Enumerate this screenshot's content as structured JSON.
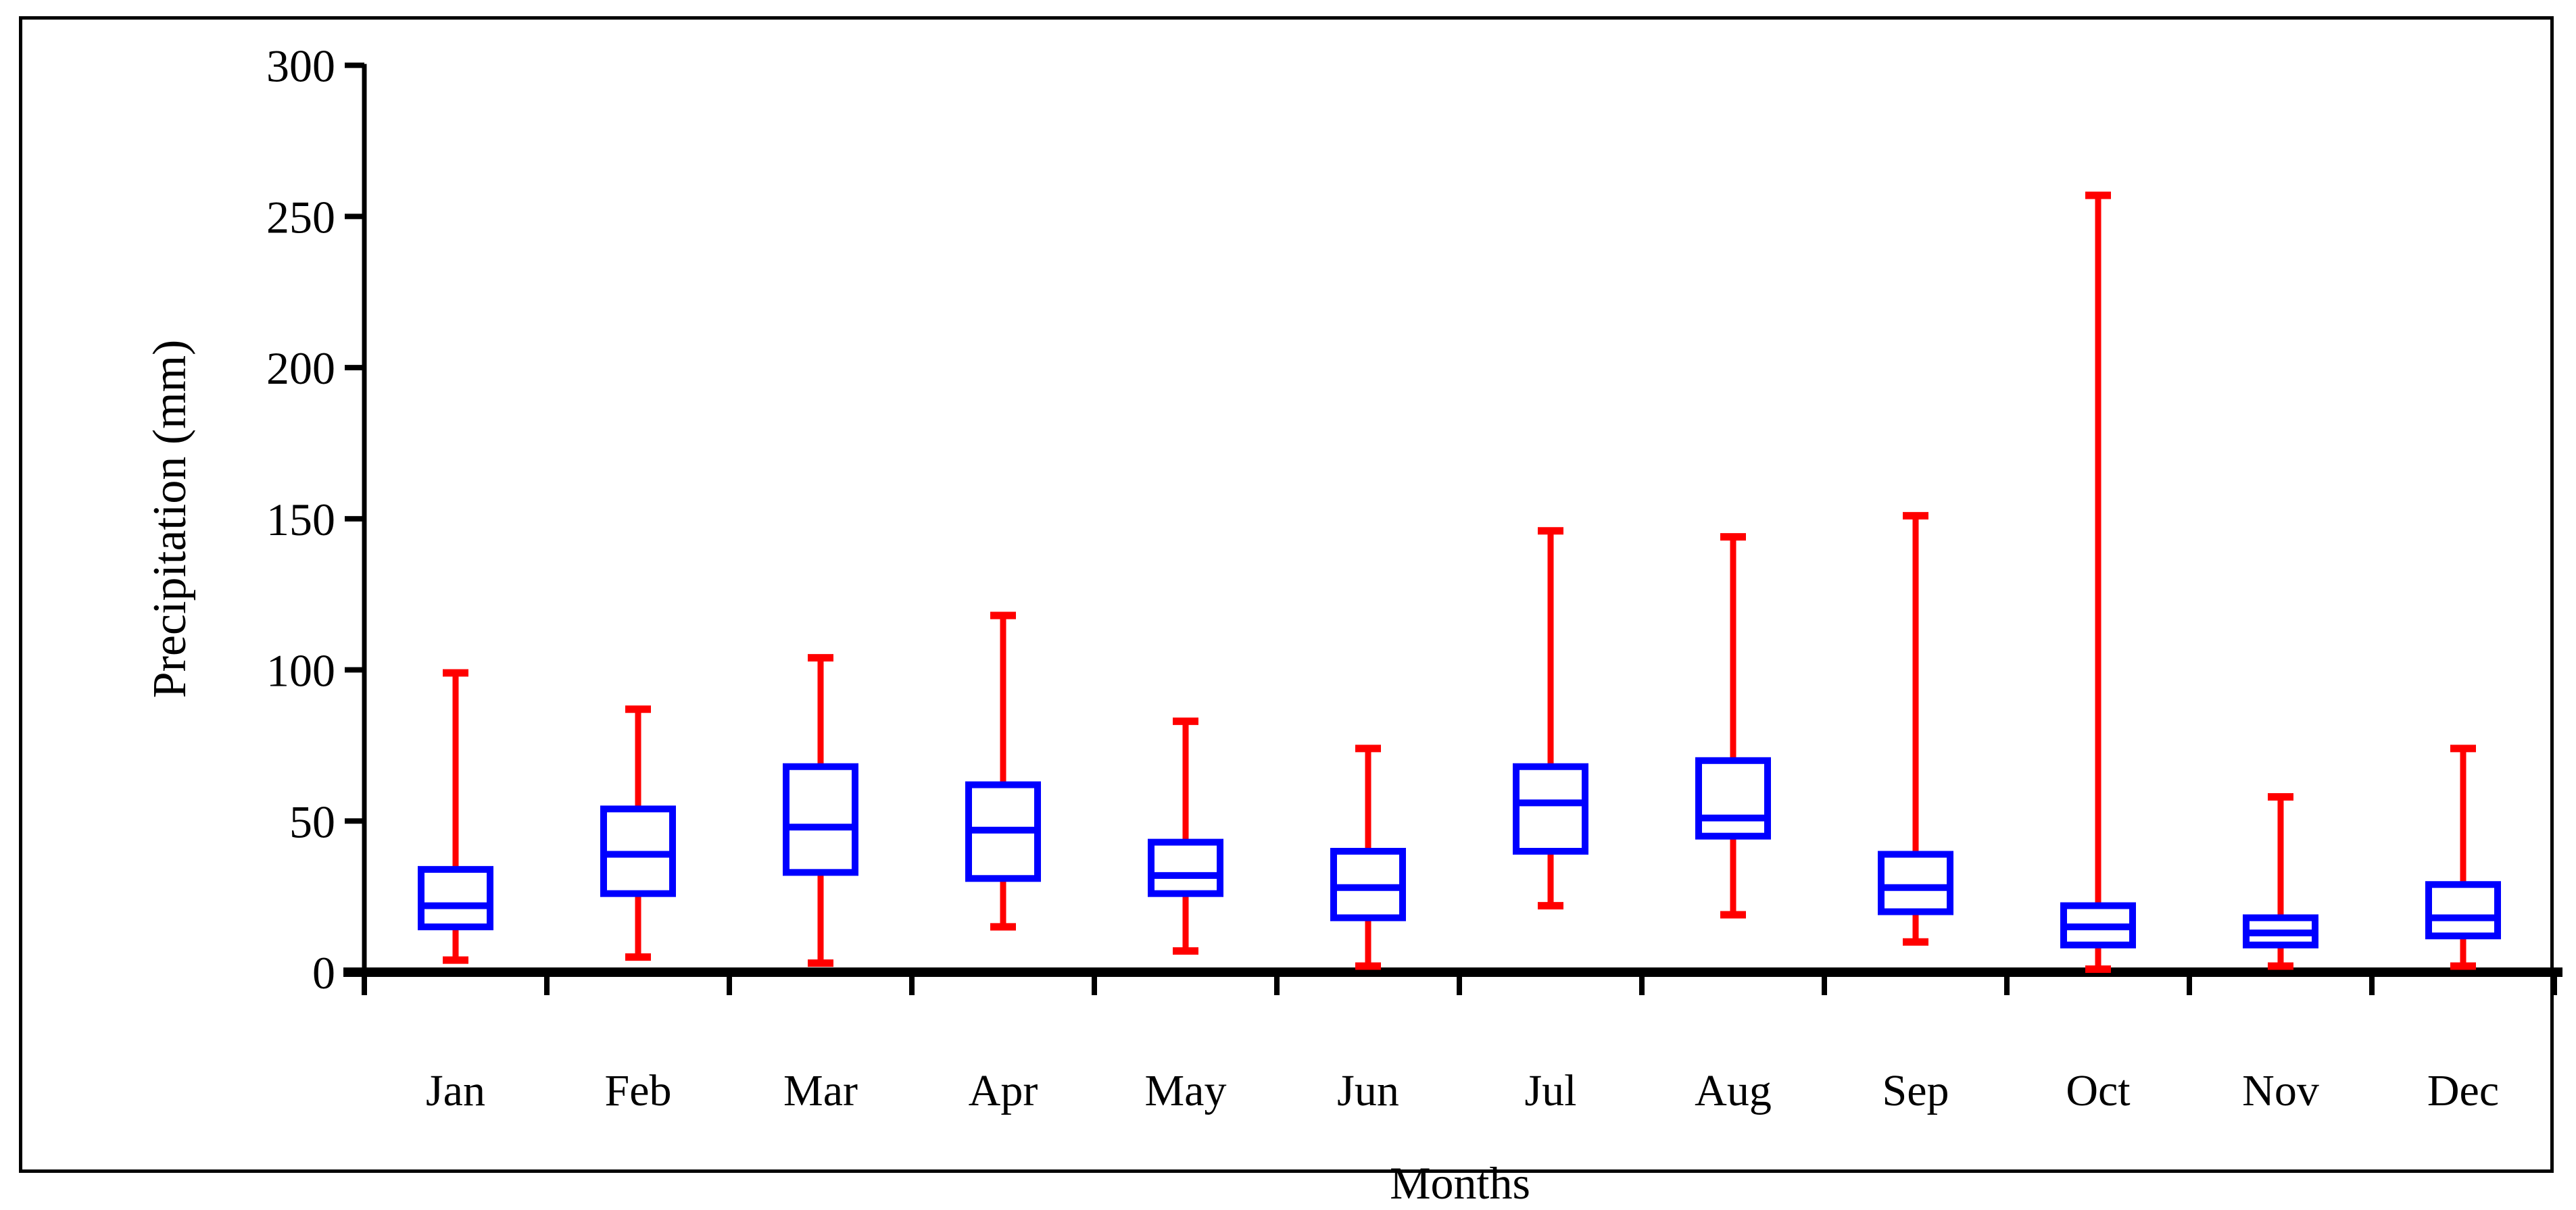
{
  "chart_data": {
    "type": "box",
    "title": "",
    "xlabel": "Months",
    "ylabel": "Precipitation (mm)",
    "ylim": [
      0,
      300
    ],
    "yticks": [
      0,
      50,
      100,
      150,
      200,
      250,
      300
    ],
    "ytick_labels": [
      "0",
      "50",
      "100",
      "150",
      "200",
      "250",
      "300"
    ],
    "grid": false,
    "legend": false,
    "categories": [
      "Jan",
      "Feb",
      "Mar",
      "Apr",
      "May",
      "Jun",
      "Jul",
      "Aug",
      "Sep",
      "Oct",
      "Nov",
      "Dec"
    ],
    "series": [
      {
        "month": "Jan",
        "min": 4,
        "q1": 15,
        "median": 22,
        "q3": 34,
        "max": 99
      },
      {
        "month": "Feb",
        "min": 5,
        "q1": 26,
        "median": 39,
        "q3": 54,
        "max": 87
      },
      {
        "month": "Mar",
        "min": 3,
        "q1": 33,
        "median": 48,
        "q3": 68,
        "max": 104
      },
      {
        "month": "Apr",
        "min": 15,
        "q1": 31,
        "median": 47,
        "q3": 62,
        "max": 118
      },
      {
        "month": "May",
        "min": 7,
        "q1": 26,
        "median": 32,
        "q3": 43,
        "max": 83
      },
      {
        "month": "Jun",
        "min": 2,
        "q1": 18,
        "median": 28,
        "q3": 40,
        "max": 74
      },
      {
        "month": "Jul",
        "min": 22,
        "q1": 40,
        "median": 56,
        "q3": 68,
        "max": 146
      },
      {
        "month": "Aug",
        "min": 19,
        "q1": 45,
        "median": 51,
        "q3": 70,
        "max": 144
      },
      {
        "month": "Sep",
        "min": 10,
        "q1": 20,
        "median": 28,
        "q3": 39,
        "max": 151
      },
      {
        "month": "Oct",
        "min": 1,
        "q1": 9,
        "median": 15,
        "q3": 22,
        "max": 257
      },
      {
        "month": "Nov",
        "min": 2,
        "q1": 9,
        "median": 13,
        "q3": 18,
        "max": 58
      },
      {
        "month": "Dec",
        "min": 2,
        "q1": 12,
        "median": 18,
        "q3": 29,
        "max": 74
      }
    ],
    "colors": {
      "box": "#0000FF",
      "whisker": "#FF0000",
      "axis": "#000000",
      "background": "#FFFFFF"
    }
  }
}
